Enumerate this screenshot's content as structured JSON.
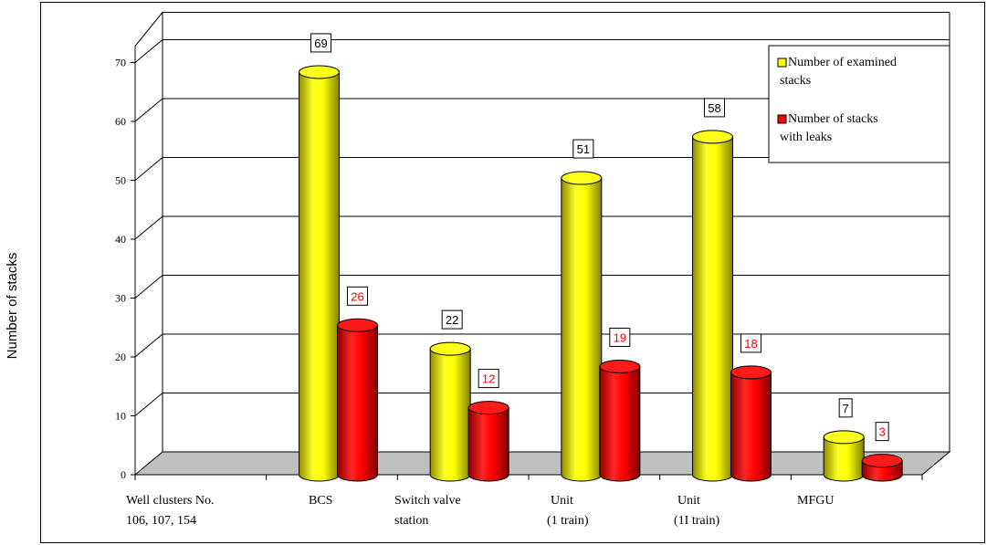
{
  "chart_data": {
    "type": "bar",
    "ylabel": "Number of stacks",
    "xlabel": "",
    "ylim": [
      0,
      70
    ],
    "yticks": [
      0,
      10,
      20,
      30,
      40,
      50,
      60,
      70
    ],
    "grid": true,
    "legend_position": "top-right",
    "categories": [
      [
        "Well clusters No.",
        "106, 107, 154"
      ],
      [
        "BCS"
      ],
      [
        "Switch valve",
        "station"
      ],
      [
        "Unit",
        "(1 train)"
      ],
      [
        "Unit",
        "(1I train)"
      ],
      [
        "MFGU"
      ]
    ],
    "series": [
      {
        "name": "Number of examined stacks",
        "legend_lines": [
          "Number of examined",
          "stacks"
        ],
        "color": "#ffff00",
        "label_color": "#000000",
        "values": [
          null,
          69,
          22,
          51,
          58,
          7
        ]
      },
      {
        "name": "Number of stacks with leaks",
        "legend_lines": [
          "Number of stacks",
          "with leaks"
        ],
        "color": "#ff0000",
        "label_color": "#ff0000",
        "values": [
          null,
          26,
          12,
          19,
          18,
          3
        ]
      }
    ]
  }
}
